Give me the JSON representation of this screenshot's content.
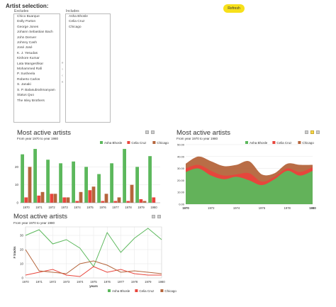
{
  "selection": {
    "title": "Artist selection:",
    "refresh_label": "Refresh",
    "excludes_label": "Excludes",
    "includes_label": "Includes",
    "excludes": [
      "Chico Buarque",
      "Dolly Parton",
      "George Jones",
      "Johann Sebastian Bach",
      "John Denver",
      "Johnny Cash",
      "José José",
      "K. J. Yesudas",
      "Kishore Kumar",
      "Lata Mangeshkar",
      "Mohammed Rafi",
      "P. Susheela",
      "Roberto Carlos",
      "S. Janaki",
      "S. P. Balasubrahmanyam",
      "Status Quo",
      "The Isley Brothers"
    ],
    "includes": [
      "Asha Bhosle",
      "Celia Cruz",
      "Chicago"
    ],
    "arrows": [
      "»",
      "›",
      "‹",
      "«"
    ]
  },
  "colors": {
    "asha": "#5cb85c",
    "celia": "#e8453c",
    "chicago": "#b5653c",
    "grid": "#e5e5e5"
  },
  "charts": [
    {
      "title": "Most active artists",
      "subtitle": "From year 1970 to year 1980",
      "chart_data": {
        "type": "bar",
        "categories": [
          "1970",
          "1971",
          "1972",
          "1973",
          "1974",
          "1975",
          "1976",
          "1977",
          "1978",
          "1979",
          "1980"
        ],
        "series": [
          {
            "name": "Asha Bhosle",
            "values": [
              27,
              30,
              24,
              22,
              23,
              20,
              16,
              22,
              30,
              20,
              26
            ]
          },
          {
            "name": "Celia Cruz",
            "values": [
              3,
              4,
              5,
              3,
              1,
              7,
              1,
              1,
              1,
              2,
              3
            ]
          },
          {
            "name": "Chicago",
            "values": [
              20,
              6,
              5,
              3,
              6,
              9,
              5,
              3,
              10,
              1,
              0
            ]
          }
        ],
        "yticks": [
          "0",
          "10",
          "20"
        ],
        "ylim": [
          0,
          32
        ]
      }
    },
    {
      "title": "Most active artists",
      "subtitle": "From year 1970 to year 1980",
      "chart_data": {
        "type": "area",
        "x": [
          1970,
          1971,
          1972,
          1973,
          1974,
          1975,
          1976,
          1977,
          1978,
          1979,
          1980
        ],
        "xticks": [
          "1970",
          "1972",
          "1974",
          "1976",
          "1978",
          "1980"
        ],
        "yticks": [
          "0.00",
          "10.00",
          "20.00",
          "30.00",
          "40.00",
          "50.00"
        ],
        "ylim": [
          0,
          50
        ],
        "series": [
          {
            "name": "Asha Bhosle",
            "values": [
              27,
              30,
              24,
              21,
              23,
              20,
              16,
              21,
              28,
              24,
              28
            ]
          },
          {
            "name": "Celia Cruz",
            "values": [
              3,
              3,
              4,
              3,
              2,
              6,
              3,
              2,
              2,
              3,
              3
            ]
          },
          {
            "name": "Chicago",
            "values": [
              4,
              7,
              8,
              8,
              8,
              10,
              6,
              3,
              4,
              6,
              2
            ]
          }
        ]
      }
    },
    {
      "title": "Most active artists",
      "subtitle": "From year 1970 to year 1980",
      "chart_data": {
        "type": "line",
        "x": [
          1970,
          1971,
          1972,
          1973,
          1974,
          1975,
          1976,
          1977,
          1978,
          1979,
          1980
        ],
        "xticks": [
          "1970",
          "1971",
          "1972",
          "1973",
          "1974",
          "1975",
          "1976",
          "1977",
          "1978",
          "1979",
          "1980"
        ],
        "yticks": [
          "0",
          "10",
          "20",
          "30"
        ],
        "ylabel": "# tracks",
        "xlabel": "years",
        "ylim": [
          0,
          36
        ],
        "series": [
          {
            "name": "Asha Bhosle",
            "values": [
              30,
              34,
              24,
              27,
              21,
              8,
              32,
              18,
              28,
              35,
              27
            ]
          },
          {
            "name": "Celia Cruz",
            "values": [
              2,
              4,
              6,
              2,
              1,
              8,
              4,
              6,
              3,
              2,
              2
            ]
          },
          {
            "name": "Chicago",
            "values": [
              20,
              5,
              4,
              3,
              10,
              12,
              9,
              4,
              5,
              4,
              3
            ]
          }
        ]
      }
    }
  ]
}
